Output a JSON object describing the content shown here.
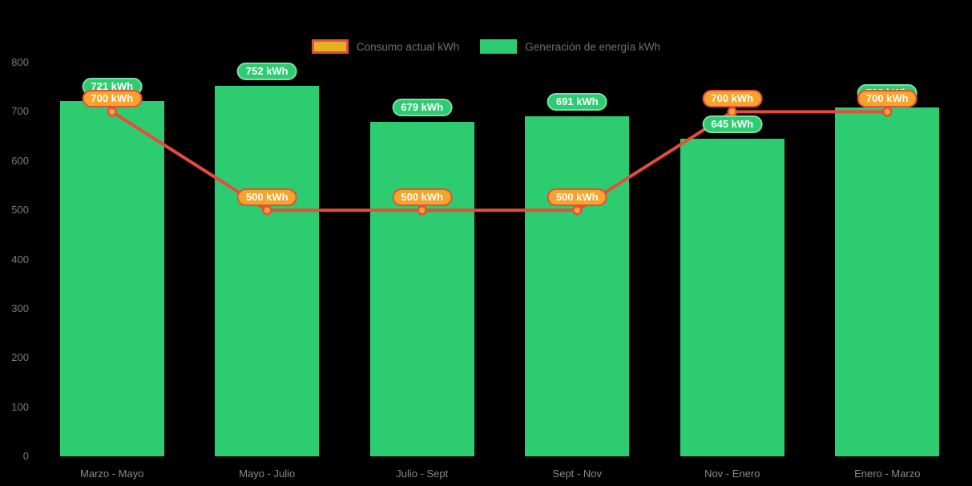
{
  "legend": {
    "consumption_label": "Consumo actual kWh",
    "generation_label": "Generación de energía kWh"
  },
  "colors": {
    "background": "#000000",
    "bar_green": "#2ecc71",
    "green_badge_border": "#7be0a6",
    "line_red": "#e74c3c",
    "marker_fill": "#f5a42c",
    "orange_badge_fill": "#f5a42c",
    "orange_badge_border": "#e74c3c",
    "axis_text": "#7a7a7a",
    "legend_text": "#6e7276"
  },
  "chart_data": {
    "type": "bar-line-combo",
    "title": "",
    "xlabel": "",
    "ylabel": "",
    "categories": [
      "Marzo - Mayo",
      "Mayo - Julio",
      "Julio - Sept",
      "Sept - Nov",
      "Nov - Enero",
      "Enero - Marzo"
    ],
    "series": [
      {
        "name": "Generación de energía kWh",
        "type": "bar",
        "values": [
          721,
          752,
          679,
          691,
          645,
          708
        ],
        "labels": [
          "721 kWh",
          "752 kWh",
          "679 kWh",
          "691 kWh",
          "645 kWh",
          "708 kWh"
        ]
      },
      {
        "name": "Consumo actual kWh",
        "type": "line",
        "values": [
          700,
          500,
          500,
          500,
          700,
          700
        ],
        "labels": [
          "700 kWh",
          "500 kWh",
          "500 kWh",
          "500 kWh",
          "700 kWh",
          "700 kWh"
        ]
      }
    ],
    "ylim": [
      0,
      800
    ],
    "yticks": [
      0,
      100,
      200,
      300,
      400,
      500,
      600,
      700,
      800
    ],
    "label_suffix": " kWh",
    "legend_position": "top",
    "grid": false
  }
}
